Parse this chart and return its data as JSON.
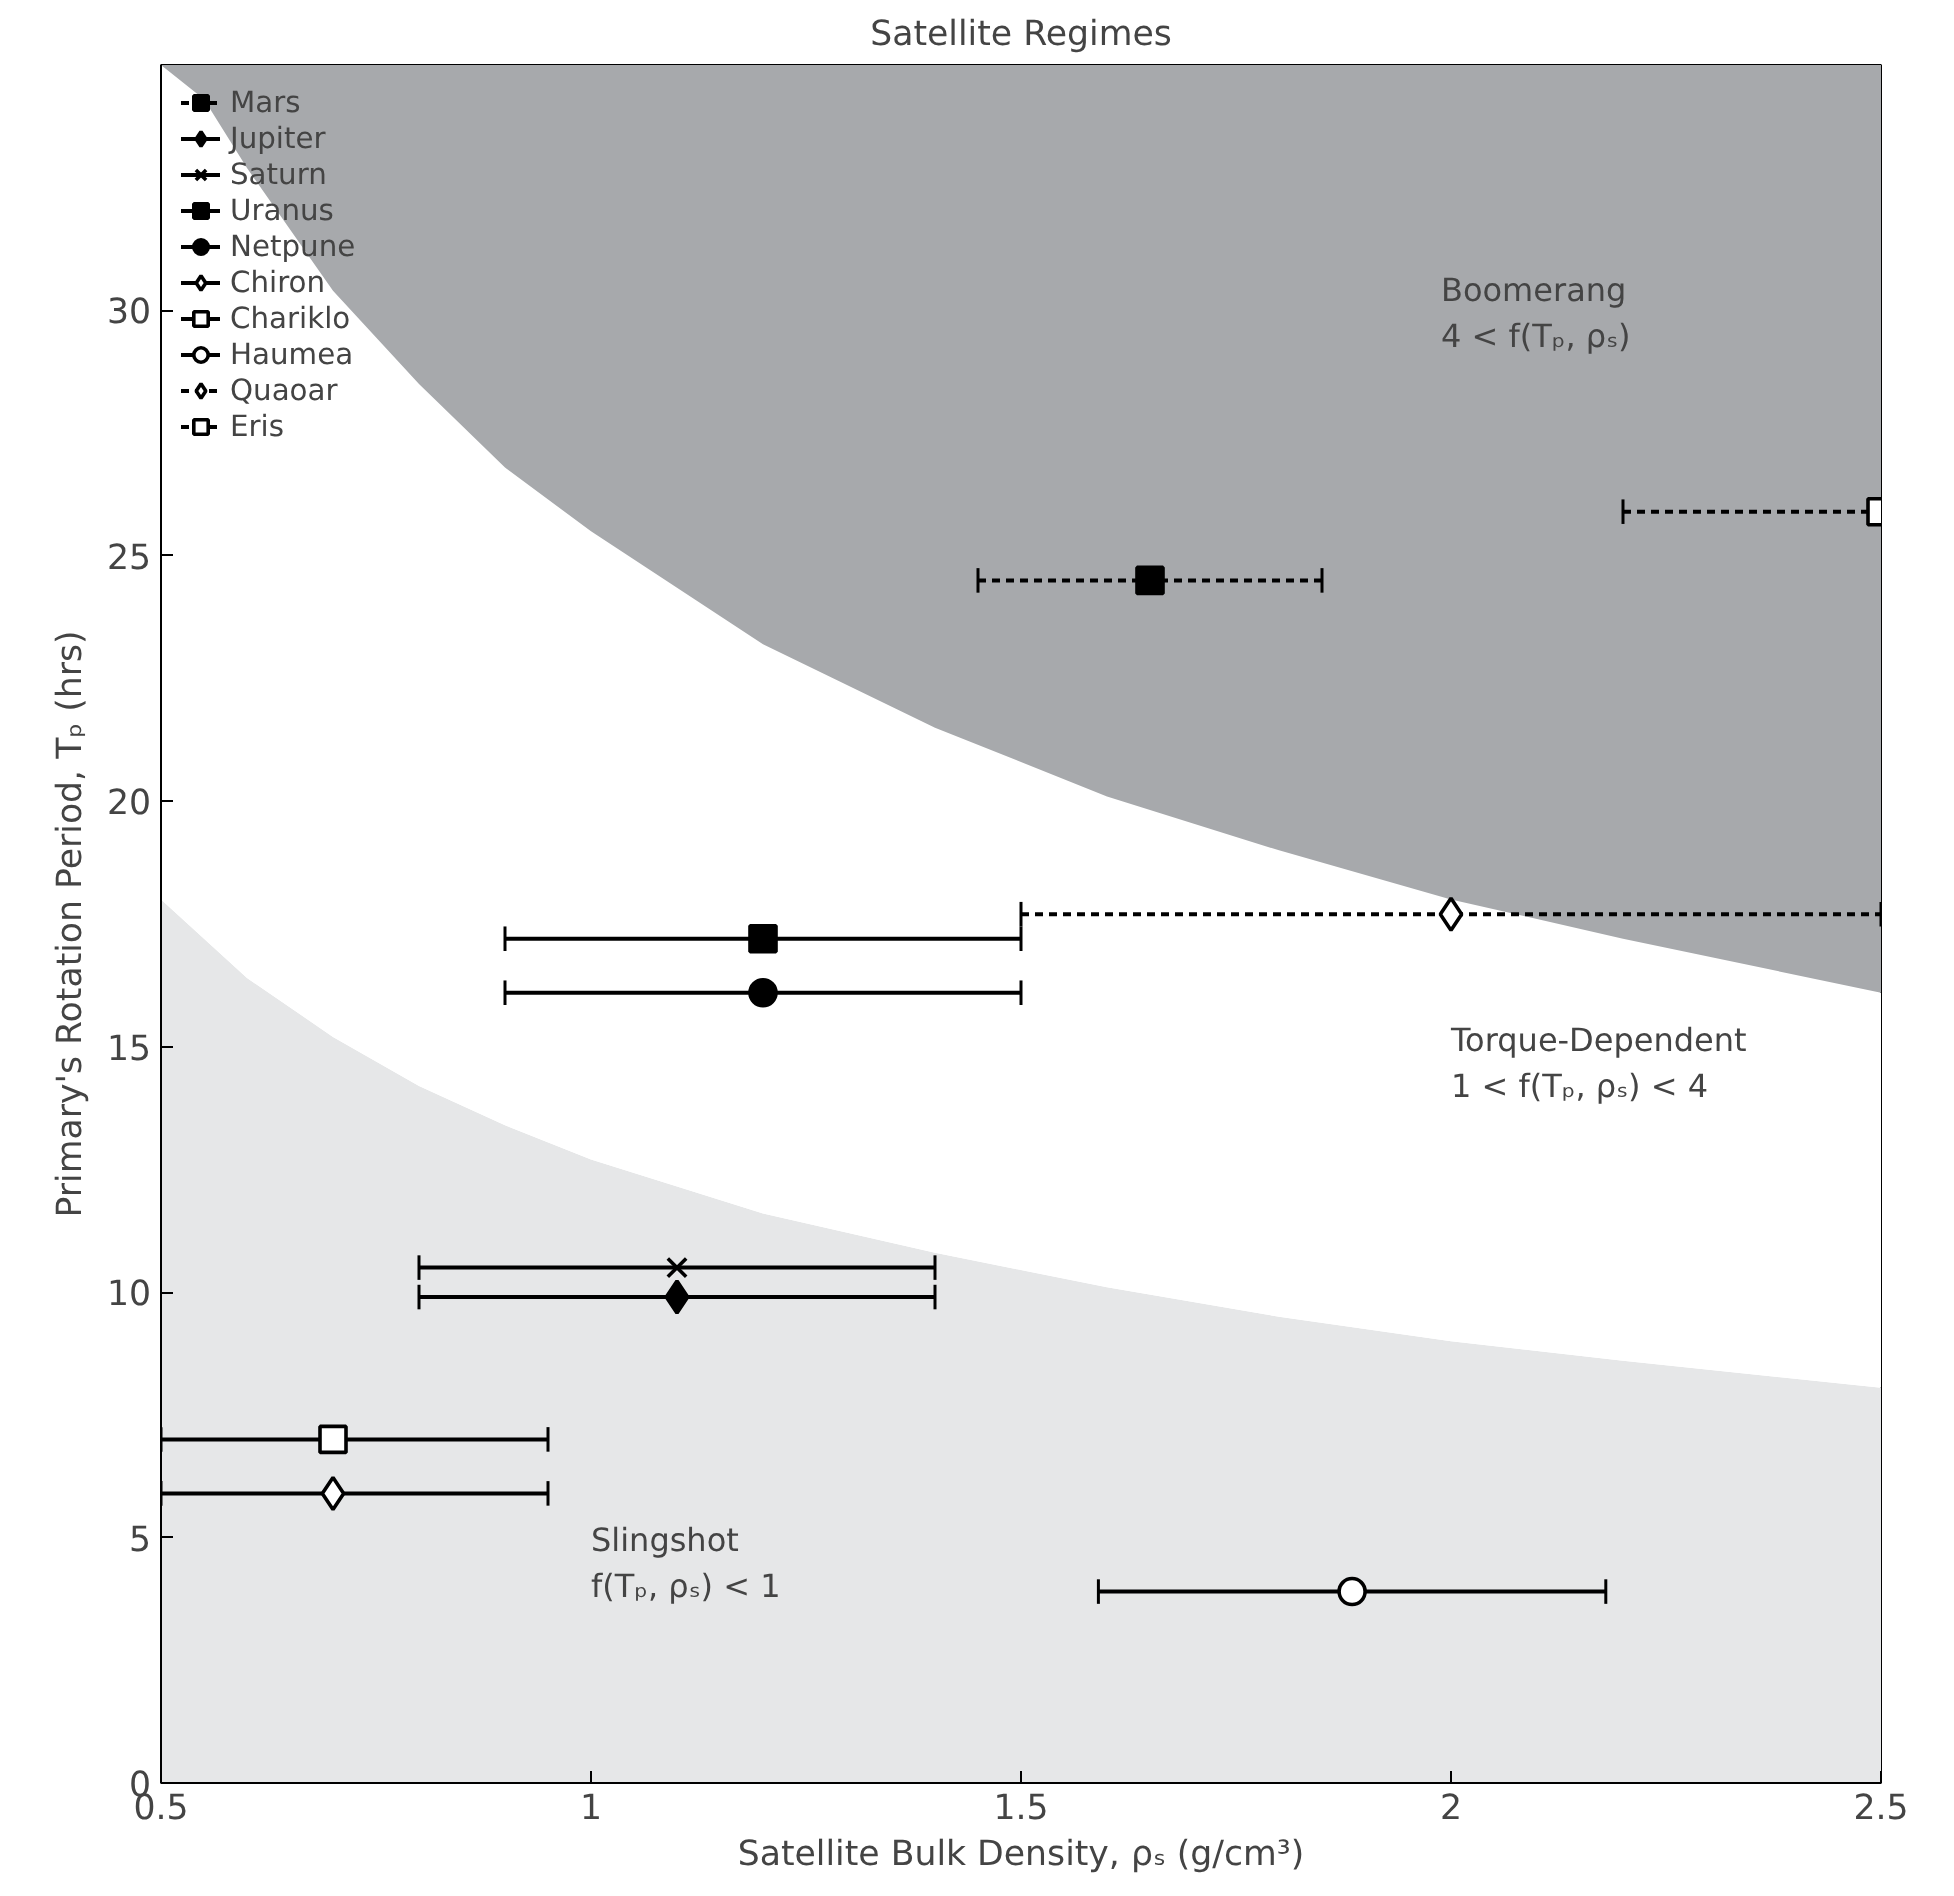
{
  "chart_data": {
    "type": "scatter",
    "title": "Satellite Regimes",
    "xlabel": "Satellite Bulk Density, ρₛ (g/cm³)",
    "ylabel": "Primary's Rotation Period, Tₚ (hrs)",
    "xlim": [
      0.5,
      2.5
    ],
    "ylim": [
      0,
      35
    ],
    "xticks": [
      0.5,
      1,
      1.5,
      2,
      2.5
    ],
    "yticks": [
      0,
      5,
      10,
      15,
      20,
      25,
      30
    ],
    "grid": false,
    "legend": "top left",
    "stacked": true,
    "series": [
      {
        "type": "area",
        "color": "#e6e7e8",
        "x": [
          0.5,
          0.55,
          0.6,
          0.7,
          0.8,
          0.9,
          1.0,
          1.2,
          1.4,
          1.6,
          1.8,
          2.0,
          2.2,
          2.5
        ],
        "values": [
          18.0,
          17.2,
          16.4,
          15.2,
          14.2,
          13.4,
          12.7,
          11.6,
          10.8,
          10.1,
          9.5,
          9.0,
          8.6,
          8.05
        ]
      },
      {
        "type": "area",
        "color": "#ffffff",
        "x": [
          0.5,
          0.55,
          0.6,
          0.7,
          0.8,
          0.9,
          1.0,
          1.2,
          1.4,
          1.6,
          1.8,
          2.0,
          2.2,
          2.5
        ],
        "values": [
          17.0,
          17.1,
          16.5,
          15.2,
          14.3,
          13.4,
          12.8,
          11.6,
          10.7,
          10.0,
          9.5,
          9.0,
          8.6,
          8.05
        ]
      },
      {
        "type": "area",
        "color": "#a7a9ac",
        "x": [
          0.5,
          0.55,
          0.6,
          0.7,
          0.8,
          0.9,
          1.0,
          1.2,
          1.4,
          1.6,
          1.8,
          2.0,
          2.2,
          2.5
        ],
        "values": [
          0,
          0.7,
          2.1,
          4.6,
          6.5,
          8.2,
          9.5,
          11.8,
          13.5,
          14.9,
          16.0,
          17.0,
          17.8,
          18.9
        ]
      },
      {
        "name": "Mars",
        "color": "#000000",
        "marker": "square",
        "line_style": "dashed",
        "x": [
          1.65
        ],
        "values": [
          24.5
        ],
        "xerrors": [
          [
            1.45,
            1.85
          ]
        ]
      },
      {
        "name": "Jupiter",
        "color": "#000000",
        "marker": "diamond",
        "line_style": "solid",
        "x": [
          1.1
        ],
        "values": [
          9.9
        ],
        "xerrors": [
          [
            0.8,
            1.4
          ]
        ]
      },
      {
        "name": "Saturn",
        "color": "#000000",
        "marker": "cross",
        "line_style": "solid",
        "x": [
          1.1
        ],
        "values": [
          10.5
        ],
        "xerrors": [
          [
            0.8,
            1.4
          ]
        ]
      },
      {
        "name": "Uranus",
        "color": "#000000",
        "marker": "square",
        "line_style": "solid",
        "x": [
          1.2
        ],
        "values": [
          17.2
        ],
        "xerrors": [
          [
            0.9,
            1.5
          ]
        ]
      },
      {
        "name": "Netpune",
        "color": "#000000",
        "marker": "circle",
        "line_style": "solid",
        "x": [
          1.2
        ],
        "values": [
          16.1
        ],
        "xerrors": [
          [
            0.9,
            1.5
          ]
        ]
      },
      {
        "name": "Chiron",
        "color": "#000000",
        "colors": [
          "#ffffff"
        ],
        "marker": "diamond",
        "line_style": "solid",
        "x": [
          0.7
        ],
        "values": [
          5.9
        ],
        "xerrors": [
          [
            0.5,
            0.95
          ]
        ]
      },
      {
        "name": "Chariklo",
        "color": "#000000",
        "colors": [
          "#ffffff"
        ],
        "marker": "square",
        "line_style": "solid",
        "x": [
          0.7
        ],
        "values": [
          7.0
        ],
        "xerrors": [
          [
            0.5,
            0.95
          ]
        ]
      },
      {
        "name": "Haumea",
        "color": "#000000",
        "colors": [
          "#ffffff"
        ],
        "marker": "circle",
        "line_style": "solid",
        "x": [
          1.885
        ],
        "values": [
          3.9
        ],
        "xerrors": [
          [
            1.59,
            2.18
          ]
        ]
      },
      {
        "name": "Quaoar",
        "color": "#000000",
        "colors": [
          "#ffffff"
        ],
        "marker": "diamond",
        "line_style": "dashed",
        "x": [
          2.0
        ],
        "values": [
          17.7
        ],
        "xerrors": [
          [
            1.5,
            2.5
          ]
        ]
      },
      {
        "name": "Eris",
        "color": "#000000",
        "colors": [
          "#ffffff"
        ],
        "marker": "square",
        "line_style": "dashed",
        "x": [
          2.5
        ],
        "values": [
          25.9
        ],
        "xerrors": [
          [
            2.2,
            2.5
          ]
        ]
      }
    ],
    "annotations": [
      "Boomerang\n4 < f(Tₚ, ρₛ)",
      "Torque-Dependent\n1 < f(Tₚ, ρₛ) < 4",
      "Slingshot\nf(Tₚ, ρₛ) < 1"
    ]
  }
}
